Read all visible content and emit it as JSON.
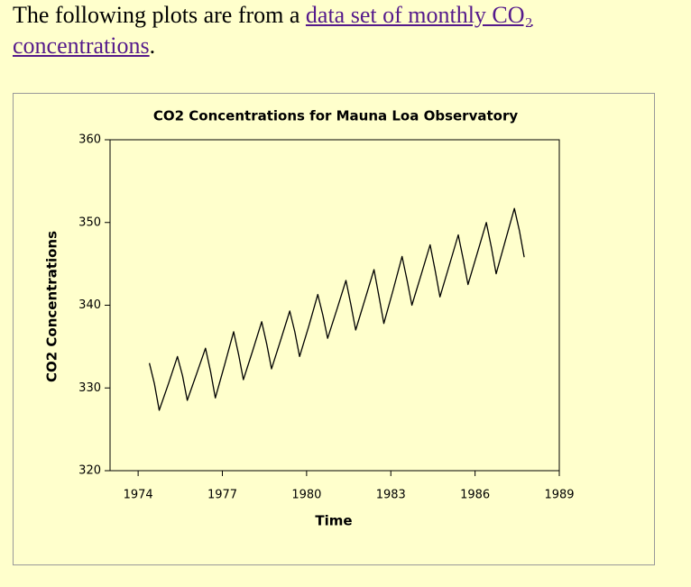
{
  "intro": {
    "text": "The following plots are from a ",
    "link": "data set of monthly CO₂ concentrations",
    "end": "."
  },
  "chart_data": {
    "type": "line",
    "title": "CO2 Concentrations for Mauna Loa Observatory",
    "xlabel": "Time",
    "ylabel": "CO2 Concentrations",
    "x": [
      1974.4,
      1974.58,
      1974.75,
      1975.08,
      1975.4,
      1975.58,
      1975.75,
      1976.08,
      1976.4,
      1976.58,
      1976.75,
      1977.08,
      1977.4,
      1977.58,
      1977.75,
      1978.08,
      1978.4,
      1978.58,
      1978.75,
      1979.08,
      1979.4,
      1979.58,
      1979.75,
      1980.08,
      1980.4,
      1980.58,
      1980.75,
      1981.08,
      1981.4,
      1981.58,
      1981.75,
      1982.08,
      1982.4,
      1982.58,
      1982.75,
      1983.08,
      1983.4,
      1983.58,
      1983.75,
      1984.08,
      1984.4,
      1984.58,
      1984.75,
      1985.08,
      1985.4,
      1985.58,
      1985.75,
      1986.08,
      1986.4,
      1986.58,
      1986.75,
      1987.08,
      1987.4,
      1987.58,
      1987.75
    ],
    "values": [
      333.0,
      330.5,
      327.3,
      330.5,
      333.8,
      331.5,
      328.5,
      331.7,
      334.8,
      332.0,
      328.8,
      332.8,
      336.8,
      334.0,
      331.0,
      334.5,
      338.0,
      335.3,
      332.3,
      335.8,
      339.3,
      336.8,
      333.8,
      337.5,
      341.3,
      338.8,
      336.0,
      339.5,
      343.0,
      340.0,
      337.0,
      340.7,
      344.3,
      341.0,
      337.8,
      341.8,
      345.9,
      343.0,
      340.0,
      343.7,
      347.3,
      344.2,
      341.0,
      344.8,
      348.5,
      345.5,
      342.5,
      346.3,
      350.0,
      347.0,
      343.8,
      347.8,
      351.7,
      349.0,
      345.8
    ],
    "color": "#000000",
    "xlim": [
      1973,
      1989
    ],
    "xticks": [
      1974,
      1977,
      1980,
      1983,
      1986,
      1989
    ],
    "ylim": [
      320,
      360
    ],
    "yticks": [
      320,
      330,
      340,
      350,
      360
    ]
  }
}
